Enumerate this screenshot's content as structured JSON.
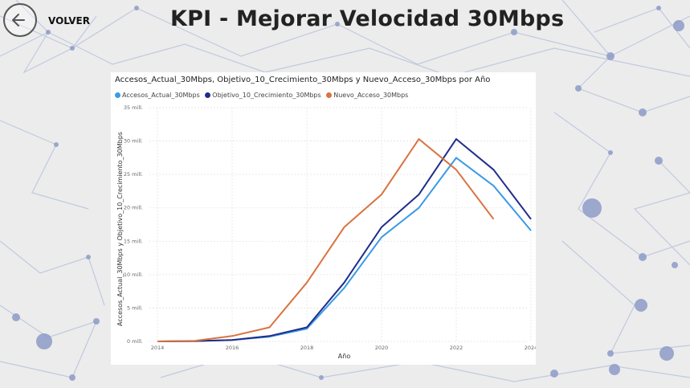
{
  "header": {
    "back_label": "VOLVER",
    "title": "KPI - Mejorar Velocidad 30Mbps"
  },
  "icons": {
    "back": "arrow-left-circle-icon"
  },
  "chart_data": {
    "type": "line",
    "title": "Accesos_Actual_30Mbps, Objetivo_10_Crecimiento_30Mbps y Nuevo_Acceso_30Mbps por Año",
    "xlabel": "Año",
    "ylabel_left": "Accesos_Actual_30Mbps y Objetivo_10_Crecimiento_30Mbps",
    "ylabel_right": "Nuevo_Acceso_30Mbps",
    "x_ticks": [
      "2014",
      "2016",
      "2018",
      "2020",
      "2022",
      "2024"
    ],
    "y_ticks": [
      "0 mill.",
      "5 mill.",
      "10 mill.",
      "15 mill.",
      "20 mill.",
      "25 mill.",
      "30 mill.",
      "35 mill."
    ],
    "xlim": [
      2014,
      2024
    ],
    "ylim": [
      0,
      35
    ],
    "grid": true,
    "legend_position": "top-left",
    "series": [
      {
        "name": "Accesos_Actual_30Mbps",
        "color": "#3a9be6",
        "axis": "left",
        "x": [
          2014,
          2015,
          2016,
          2017,
          2018,
          2019,
          2020,
          2021,
          2022,
          2023,
          2024
        ],
        "values": [
          0.0,
          0.05,
          0.2,
          0.7,
          1.9,
          8.0,
          15.6,
          20.0,
          27.5,
          23.3,
          16.6
        ]
      },
      {
        "name": "Objetivo_10_Crecimiento_30Mbps",
        "color": "#1f2d8a",
        "axis": "left",
        "x": [
          2014,
          2015,
          2016,
          2017,
          2018,
          2019,
          2020,
          2021,
          2022,
          2023,
          2024
        ],
        "values": [
          0.0,
          0.05,
          0.2,
          0.8,
          2.1,
          8.8,
          17.1,
          22.0,
          30.3,
          25.7,
          18.3
        ]
      },
      {
        "name": "Nuevo_Acceso_30Mbps",
        "color": "#d9733f",
        "axis": "right",
        "x": [
          2014,
          2015,
          2016,
          2017,
          2018,
          2019,
          2020,
          2021,
          2022,
          2023
        ],
        "values": [
          0.0,
          0.1,
          0.8,
          2.1,
          8.8,
          17.1,
          22.0,
          30.3,
          25.7,
          18.3
        ]
      }
    ]
  }
}
